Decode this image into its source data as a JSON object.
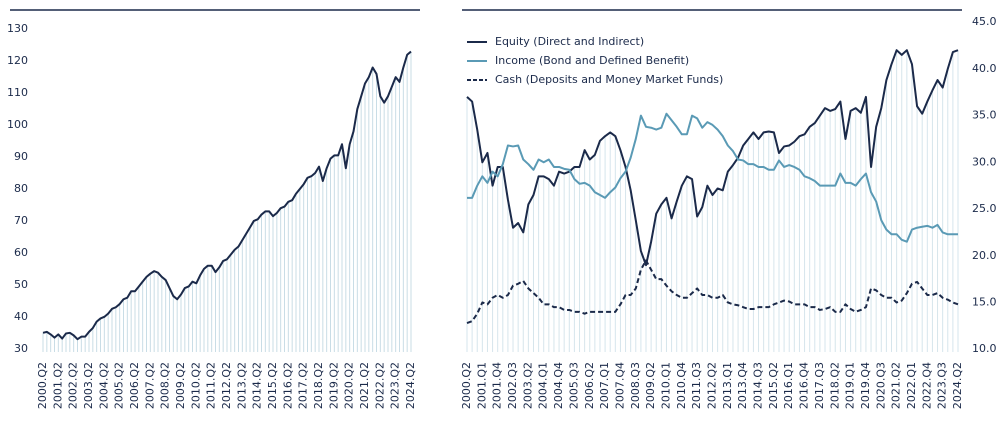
{
  "chart_data": [
    {
      "type": "line",
      "categories": [
        "2000.Q2",
        null,
        null,
        null,
        "2001.Q2",
        null,
        null,
        null,
        "2002.Q2",
        null,
        null,
        null,
        "2003.Q2",
        null,
        null,
        null,
        "2004.Q2",
        null,
        null,
        null,
        "2005.Q2",
        null,
        null,
        null,
        "2006.Q2",
        null,
        null,
        null,
        "2007.Q2",
        null,
        null,
        null,
        "2008.Q2",
        null,
        null,
        null,
        "2009.Q2",
        null,
        null,
        null,
        "2010.Q2",
        null,
        null,
        null,
        "2011.Q2",
        null,
        null,
        null,
        "2012.Q2",
        null,
        null,
        null,
        "2013.Q2",
        null,
        null,
        null,
        "2014.Q2",
        null,
        null,
        null,
        "2015.Q2",
        null,
        null,
        null,
        "2016.Q2",
        null,
        null,
        null,
        "2017.Q2",
        null,
        null,
        null,
        "2018.Q2",
        null,
        null,
        null,
        "2019.Q2",
        null,
        null,
        null,
        "2020.Q2",
        null,
        null,
        null,
        "2021.Q2",
        null,
        null,
        null,
        "2022.Q2",
        null,
        null,
        null,
        "2023.Q2",
        null,
        null,
        null,
        "2024.Q2"
      ],
      "series": [
        {
          "color": "#1b2a4a",
          "line_style": "solid",
          "values": [
            35,
            35.3,
            34.5,
            33.5,
            34.5,
            33.2,
            34.8,
            35,
            34.2,
            33,
            33.8,
            33.8,
            35.3,
            36.5,
            38.5,
            39.5,
            40,
            41,
            42.5,
            43,
            44,
            45.5,
            46,
            48,
            48,
            49.5,
            51,
            52.5,
            53.5,
            54.3,
            53.8,
            52.5,
            51.5,
            49,
            46.5,
            45.5,
            47,
            49,
            49.5,
            51,
            50.5,
            53,
            55,
            56,
            56,
            54,
            55.5,
            57.5,
            58,
            59.5,
            61,
            62,
            64,
            66,
            68,
            70,
            70.5,
            72,
            73,
            73,
            71.5,
            72.5,
            74,
            74.5,
            76,
            76.5,
            78.5,
            80,
            81.5,
            83.5,
            84,
            85,
            87,
            82.5,
            86.5,
            89.5,
            90.5,
            90.5,
            94,
            86.5,
            94,
            98,
            105,
            109,
            113,
            115,
            118,
            116,
            109,
            107,
            109,
            112,
            115,
            113.5,
            118,
            122,
            123
          ]
        }
      ],
      "ylim": [
        29,
        136
      ],
      "yticks": [
        30,
        40,
        50,
        60,
        70,
        80,
        90,
        100,
        110,
        120,
        130
      ],
      "y_axis_side": "left",
      "grid": false,
      "drop_lines": true,
      "drop_line_color": "#c9dde6"
    },
    {
      "type": "line",
      "categories": [
        "2000.Q2",
        null,
        null,
        "2001.Q1",
        null,
        null,
        "2001.Q4",
        null,
        null,
        "2002.Q3",
        null,
        null,
        "2003.Q2",
        null,
        null,
        "2004.Q1",
        null,
        null,
        "2004.Q4",
        null,
        null,
        "2005.Q3",
        null,
        null,
        "2006.Q2",
        null,
        null,
        "2007.Q1",
        null,
        null,
        "2007.Q4",
        null,
        null,
        "2008.Q3",
        null,
        null,
        "2009.Q2",
        null,
        null,
        "2010.Q1",
        null,
        null,
        "2010.Q4",
        null,
        null,
        "2011.Q3",
        null,
        null,
        "2012.Q2",
        null,
        null,
        "2013.Q1",
        null,
        null,
        "2013.Q4",
        null,
        null,
        "2014.Q3",
        null,
        null,
        "2015.Q2",
        null,
        null,
        "2016.Q1",
        null,
        null,
        "2016.Q4",
        null,
        null,
        "2017.Q3",
        null,
        null,
        "2018.Q2",
        null,
        null,
        "2019.Q1",
        null,
        null,
        "2019.Q4",
        null,
        null,
        "2020.Q3",
        null,
        null,
        "2021.Q2",
        null,
        null,
        "2022.Q1",
        null,
        null,
        "2022.Q4",
        null,
        null,
        "2023.Q3",
        null,
        null,
        "2024.Q2"
      ],
      "series": [
        {
          "name": "Equity (Direct and Indirect)",
          "color": "#1b2a4a",
          "line_style": "solid",
          "values": [
            37,
            36.5,
            33.5,
            30,
            31,
            27.5,
            29.5,
            29.5,
            26,
            23,
            23.5,
            22.5,
            25.5,
            26.5,
            28.5,
            28.5,
            28.2,
            27.5,
            29,
            28.8,
            29,
            29.5,
            29.5,
            31.3,
            30.3,
            30.8,
            32.3,
            32.8,
            33.2,
            32.8,
            31.3,
            29.5,
            27,
            23.8,
            20.5,
            19,
            21.5,
            24.5,
            25.5,
            26.2,
            24,
            25.8,
            27.5,
            28.5,
            28.2,
            24.2,
            25.2,
            27.5,
            26.5,
            27.2,
            27,
            29,
            29.7,
            30.5,
            31.8,
            32.5,
            33.2,
            32.5,
            33.2,
            33.3,
            33.2,
            31,
            31.7,
            31.8,
            32.2,
            32.8,
            33,
            33.8,
            34.2,
            35,
            35.8,
            35.5,
            35.7,
            36.5,
            32.5,
            35.5,
            35.8,
            35.3,
            37,
            29.5,
            33.8,
            35.8,
            38.8,
            40.5,
            42,
            41.5,
            42,
            40.5,
            36,
            35.2,
            36.5,
            37.7,
            38.8,
            38,
            40,
            41.8,
            42
          ]
        },
        {
          "name": "Income (Bond and Defined Benefit)",
          "color": "#5a9ab5",
          "line_style": "solid",
          "values": [
            26.2,
            26.2,
            27.5,
            28.5,
            27.8,
            29,
            28.5,
            29.8,
            31.8,
            31.7,
            31.8,
            30.3,
            29.8,
            29.2,
            30.3,
            30,
            30.3,
            29.5,
            29.5,
            29.3,
            29.2,
            28.2,
            27.7,
            27.8,
            27.5,
            26.8,
            26.5,
            26.2,
            26.8,
            27.3,
            28.3,
            29,
            30.5,
            32.5,
            35,
            33.8,
            33.7,
            33.5,
            33.7,
            35.2,
            34.5,
            33.8,
            33,
            33,
            35,
            34.7,
            33.7,
            34.3,
            34,
            33.5,
            32.8,
            31.8,
            31.2,
            30.3,
            30.2,
            29.8,
            29.8,
            29.5,
            29.5,
            29.2,
            29.2,
            30.2,
            29.5,
            29.7,
            29.5,
            29.2,
            28.5,
            28.3,
            28,
            27.5,
            27.5,
            27.5,
            27.5,
            28.8,
            27.8,
            27.8,
            27.5,
            28.2,
            28.8,
            26.8,
            25.8,
            23.8,
            22.8,
            22.3,
            22.3,
            21.7,
            21.5,
            22.8,
            23,
            23.1,
            23.2,
            23,
            23.3,
            22.5,
            22.3,
            22.3,
            22.3
          ]
        },
        {
          "name": "Cash (Deposits and Money Market Funds)",
          "color": "#1b2a4a",
          "line_style": "dashed",
          "values": [
            12.8,
            13,
            13.8,
            15,
            14.8,
            15.5,
            15.8,
            15.5,
            15.8,
            16.8,
            17,
            17.3,
            16.5,
            16,
            15.5,
            14.8,
            14.8,
            14.5,
            14.5,
            14.2,
            14.2,
            14,
            14,
            13.8,
            14,
            14,
            14,
            14,
            14,
            14,
            14.8,
            15.8,
            15.8,
            16.5,
            18.5,
            19.5,
            18.5,
            17.5,
            17.5,
            16.8,
            16.2,
            15.8,
            15.5,
            15.5,
            16,
            16.5,
            15.8,
            15.8,
            15.5,
            15.5,
            15.8,
            15,
            14.8,
            14.7,
            14.5,
            14.3,
            14.3,
            14.5,
            14.5,
            14.5,
            14.8,
            15,
            15.2,
            15.1,
            14.8,
            14.8,
            14.8,
            14.5,
            14.5,
            14.2,
            14.3,
            14.5,
            14,
            14,
            14.8,
            14.3,
            14,
            14.2,
            14.5,
            16.5,
            16.3,
            15.8,
            15.5,
            15.5,
            15,
            15.2,
            16,
            17,
            17.2,
            16.5,
            15.8,
            15.8,
            16,
            15.5,
            15.3,
            15,
            14.8
          ]
        }
      ],
      "ylim": [
        9.7,
        46.3
      ],
      "yticks": [
        {
          "value": 10,
          "label": "10.0"
        },
        {
          "value": 15,
          "label": "15.0"
        },
        {
          "value": 20,
          "label": "20.0"
        },
        {
          "value": 25,
          "label": "25.0"
        },
        {
          "value": 30,
          "label": "30.0"
        },
        {
          "value": 35,
          "label": "35.0"
        },
        {
          "value": 40,
          "label": "40.0"
        },
        {
          "value": 45,
          "label": "45.0"
        }
      ],
      "y_axis_side": "right",
      "grid": false,
      "legend": "top-left",
      "drop_lines": true,
      "drop_line_color": "#d6e5ec"
    }
  ]
}
